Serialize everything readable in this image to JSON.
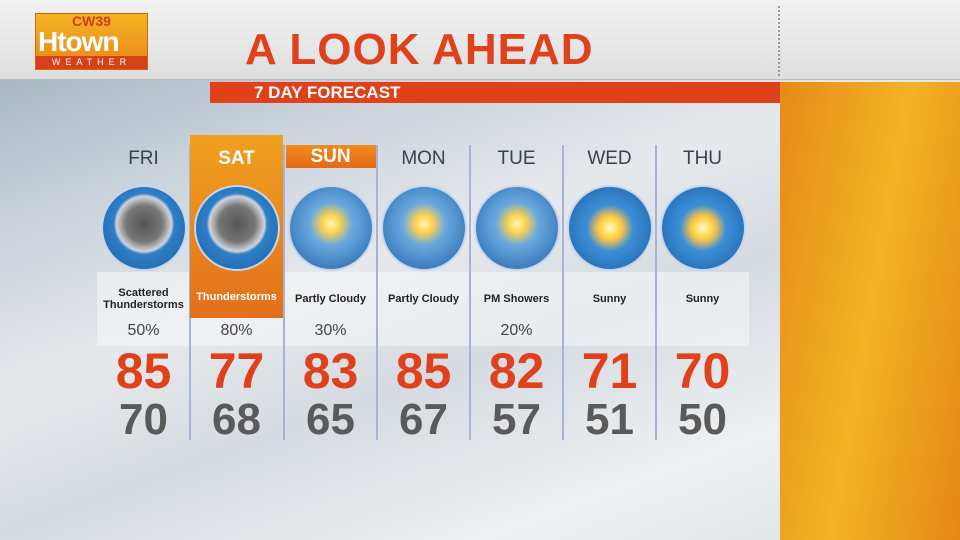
{
  "logo": {
    "network": "CW39",
    "brand": "Htown",
    "sub": "WEATHER"
  },
  "header": {
    "title": "A LOOK AHEAD",
    "subtitle": "7 DAY FORECAST"
  },
  "colors": {
    "accent": "#e0401a",
    "highlight": "#f0a020"
  },
  "days": [
    {
      "day": "FRI",
      "icon": "scattered-thunderstorms-icon",
      "condition": "Scattered Thunderstorms",
      "precip": "50%",
      "high": "85",
      "low": "70"
    },
    {
      "day": "SAT",
      "icon": "thunderstorms-icon",
      "condition": "Thunderstorms",
      "precip": "80%",
      "high": "77",
      "low": "68"
    },
    {
      "day": "SUN",
      "icon": "partly-cloudy-icon",
      "condition": "Partly Cloudy",
      "precip": "30%",
      "high": "83",
      "low": "65"
    },
    {
      "day": "MON",
      "icon": "partly-cloudy-icon",
      "condition": "Partly Cloudy",
      "precip": "",
      "high": "85",
      "low": "67"
    },
    {
      "day": "TUE",
      "icon": "pm-showers-icon",
      "condition": "PM Showers",
      "precip": "20%",
      "high": "82",
      "low": "57"
    },
    {
      "day": "WED",
      "icon": "sunny-icon",
      "condition": "Sunny",
      "precip": "",
      "high": "71",
      "low": "51"
    },
    {
      "day": "THU",
      "icon": "sunny-icon",
      "condition": "Sunny",
      "precip": "",
      "high": "70",
      "low": "50"
    }
  ]
}
